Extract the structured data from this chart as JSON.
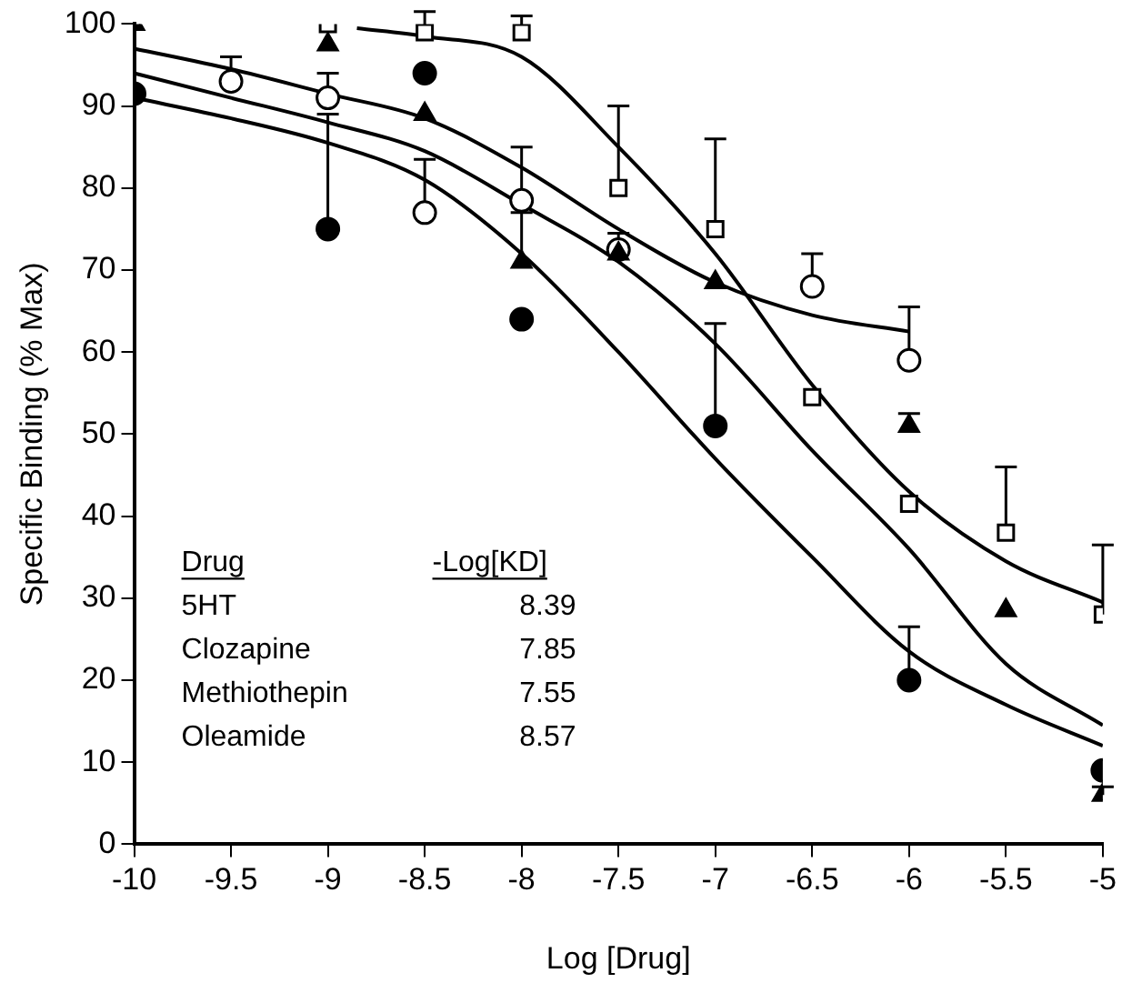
{
  "chart_data": {
    "type": "scatter",
    "xlabel": "Log [Drug]",
    "ylabel": "Specific Binding (% Max)",
    "xlim": [
      -10,
      -5
    ],
    "xticks": [
      -10,
      -9.5,
      -9,
      -8.5,
      -8,
      -7.5,
      -7,
      -6.5,
      -6,
      -5.5,
      -5
    ],
    "ylim": [
      0,
      100
    ],
    "yticks": [
      0,
      10,
      20,
      30,
      40,
      50,
      60,
      70,
      80,
      90,
      100
    ],
    "grid": false,
    "legend": false,
    "annotations": [
      "Drug",
      "-Log[KD]",
      "5HT",
      "8.39",
      "Clozapine",
      "7.85",
      "Methiothepin",
      "7.55",
      "Oleamide",
      "8.57"
    ],
    "series": [
      {
        "type": "scatter",
        "marker": "circle",
        "color": "#000000",
        "x": [
          -10,
          -9,
          -8.5,
          -8,
          -7,
          -6,
          -5
        ],
        "values": [
          91.5,
          75,
          94,
          64,
          51,
          20,
          9
        ],
        "errors": [
          null,
          [
            75,
            89
          ],
          null,
          null,
          [
            51,
            63.5
          ],
          [
            20,
            26.5
          ],
          null
        ]
      },
      {
        "type": "scatter",
        "marker": "triangle",
        "color": "#000000",
        "x": [
          -10,
          -9,
          -8.5,
          -8,
          -7.5,
          -7,
          -6,
          -5.5,
          -5
        ],
        "values": [
          100,
          97.5,
          89,
          71,
          72,
          68.5,
          51,
          28.5,
          6
        ],
        "errors": [
          null,
          null,
          null,
          [
            71,
            77
          ],
          [
            72,
            74.5
          ],
          null,
          [
            51,
            52.5
          ],
          null,
          [
            6,
            7
          ]
        ]
      },
      {
        "type": "scatter",
        "marker": "square",
        "color": "#ffffff",
        "x": [
          -9,
          -8.5,
          -8,
          -7.5,
          -7,
          -6.5,
          -6,
          -5.5,
          -5
        ],
        "values": [
          100,
          99,
          99,
          80,
          75,
          54.5,
          41.5,
          38,
          28
        ],
        "errors": [
          null,
          [
            99,
            101.5
          ],
          [
            99,
            101
          ],
          [
            80,
            90
          ],
          [
            75,
            86
          ],
          null,
          null,
          [
            38,
            46
          ],
          [
            28,
            36.5
          ]
        ]
      },
      {
        "type": "scatter",
        "marker": "circle",
        "color": "#ffffff",
        "x": [
          -9.5,
          -9,
          -8.5,
          -8,
          -7.5,
          -6.5,
          -6
        ],
        "values": [
          93,
          91,
          77,
          78.5,
          72.5,
          68,
          59
        ],
        "errors": [
          [
            93,
            96
          ],
          [
            91,
            94
          ],
          [
            77,
            83.5
          ],
          [
            78.5,
            85
          ],
          null,
          [
            68,
            72
          ],
          [
            59,
            65.5
          ]
        ]
      },
      {
        "type": "line",
        "marker": "none",
        "color": "#000000",
        "x": [
          -8.85,
          -8.5,
          -8,
          -7.5,
          -7,
          -6.5,
          -6,
          -5.5,
          -5
        ],
        "values": [
          99.5,
          98.5,
          96,
          85,
          72,
          56,
          43,
          34.5,
          29.5
        ]
      },
      {
        "type": "line",
        "marker": "none",
        "color": "#000000",
        "x": [
          -10,
          -9.5,
          -9,
          -8.5,
          -8,
          -7.5,
          -7,
          -6.5,
          -6
        ],
        "values": [
          97,
          94.5,
          91.5,
          88.5,
          82.5,
          75,
          68.5,
          64.5,
          62.5
        ]
      },
      {
        "type": "line",
        "marker": "none",
        "color": "#000000",
        "x": [
          -10,
          -9.5,
          -9,
          -8.5,
          -8,
          -7.5,
          -7,
          -6.5,
          -6,
          -5.5,
          -5
        ],
        "values": [
          94,
          91,
          88,
          84.5,
          78,
          71,
          61,
          48,
          36,
          22,
          14.5
        ]
      },
      {
        "type": "line",
        "marker": "none",
        "color": "#000000",
        "x": [
          -10,
          -9.5,
          -9,
          -8.5,
          -8,
          -7.5,
          -7,
          -6.5,
          -6,
          -5.5,
          -5
        ],
        "values": [
          91,
          88.5,
          85.5,
          81,
          72,
          60,
          47,
          35,
          23.5,
          17,
          12
        ]
      }
    ]
  }
}
